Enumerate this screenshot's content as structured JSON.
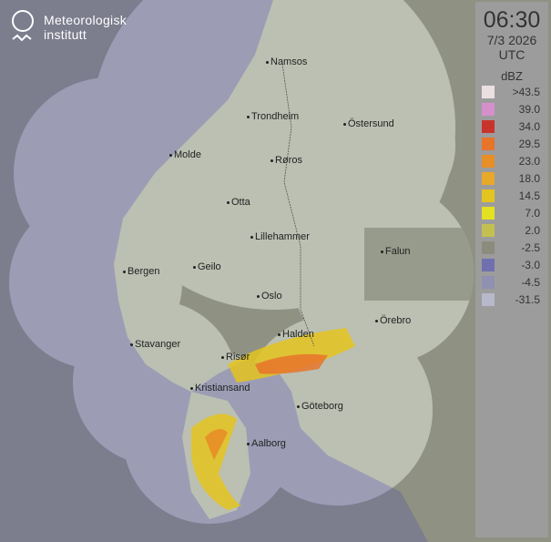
{
  "logo": {
    "line1": "Meteorologisk",
    "line2": "institutt"
  },
  "legend": {
    "time": "06:30",
    "date": "7/3 2026",
    "timezone": "UTC",
    "unit": "dBZ",
    "entries": [
      {
        "label": ">43.5",
        "color": "#ecdfe2"
      },
      {
        "label": "39.0",
        "color": "#d590cc"
      },
      {
        "label": "34.0",
        "color": "#c8342c"
      },
      {
        "label": "29.5",
        "color": "#e8742a"
      },
      {
        "label": "23.0",
        "color": "#e88e26"
      },
      {
        "label": "18.0",
        "color": "#e8a82a"
      },
      {
        "label": "14.5",
        "color": "#e4c41e"
      },
      {
        "label": "7.0",
        "color": "#e4e022"
      },
      {
        "label": "2.0",
        "color": "#c4c050"
      },
      {
        "label": "-2.5",
        "color": "#8c8c7c"
      },
      {
        "label": "-3.0",
        "color": "#7070b0"
      },
      {
        "label": "-4.5",
        "color": "#9090b0"
      },
      {
        "label": "-31.5",
        "color": "#b8b8cc"
      }
    ]
  },
  "cities": [
    {
      "name": "Namsos"
    },
    {
      "name": "Trondheim"
    },
    {
      "name": "Östersund"
    },
    {
      "name": "Molde"
    },
    {
      "name": "Røros"
    },
    {
      "name": "Otta"
    },
    {
      "name": "Lillehammer"
    },
    {
      "name": "Falun"
    },
    {
      "name": "Bergen"
    },
    {
      "name": "Geilo"
    },
    {
      "name": "Oslo"
    },
    {
      "name": "Örebro"
    },
    {
      "name": "Halden"
    },
    {
      "name": "Stavanger"
    },
    {
      "name": "Risør"
    },
    {
      "name": "Kristiansand"
    },
    {
      "name": "Göteborg"
    },
    {
      "name": "Aalborg"
    }
  ],
  "colors": {
    "background": "#7c7d8d",
    "coverage": "#9c9db5",
    "land": "#bbc0b2",
    "land_outside": "#8f9182"
  }
}
